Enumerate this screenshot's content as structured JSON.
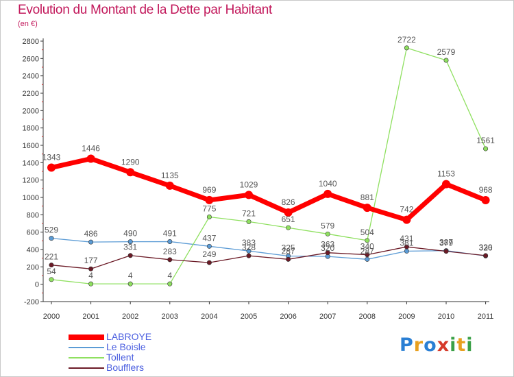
{
  "title": "Evolution du Montant de la Dette par Habitant",
  "subtitle": "(en €)",
  "brand": {
    "text": "Proxiti",
    "letters": [
      {
        "ch": "P",
        "color": "#2a7fd4"
      },
      {
        "ch": "r",
        "color": "#e8a020"
      },
      {
        "ch": "o",
        "color": "#2a7fd4"
      },
      {
        "ch": "x",
        "color": "#d63a2a"
      },
      {
        "ch": "i",
        "color": "#3aa046"
      },
      {
        "ch": "t",
        "color": "#e8a020"
      },
      {
        "ch": "i",
        "color": "#3aa046"
      }
    ]
  },
  "chart_data": {
    "type": "line",
    "title": "Evolution du Montant de la Dette par Habitant",
    "subtitle": "(en €)",
    "x": [
      "2000",
      "2001",
      "2002",
      "2003",
      "2004",
      "2005",
      "2006",
      "2007",
      "2008",
      "2009",
      "2010",
      "2011"
    ],
    "ylim": [
      -200,
      2800
    ],
    "yticks": [
      -200,
      0,
      200,
      400,
      600,
      800,
      1000,
      1200,
      1400,
      1600,
      1800,
      2000,
      2200,
      2400,
      2600,
      2800
    ],
    "grid": false,
    "legend_position": "bottom-left",
    "series": [
      {
        "name": "LABROYE",
        "color": "#ff0000",
        "bold": true,
        "values": [
          1343,
          1446,
          1290,
          1135,
          969,
          1029,
          826,
          1040,
          881,
          742,
          1153,
          968
        ]
      },
      {
        "name": "Le Boisle",
        "color": "#5b9bd5",
        "bold": false,
        "values": [
          529,
          486,
          490,
          491,
          437,
          383,
          325,
          320,
          287,
          381,
          387,
          326
        ]
      },
      {
        "name": "Tollent",
        "color": "#8fe060",
        "bold": false,
        "values": [
          54,
          4,
          4,
          4,
          775,
          721,
          651,
          579,
          504,
          2722,
          2579,
          1561
        ]
      },
      {
        "name": "Boufflers",
        "color": "#6b1a26",
        "bold": false,
        "values": [
          221,
          177,
          331,
          283,
          249,
          328,
          287,
          363,
          340,
          431,
          379,
          330
        ]
      }
    ]
  }
}
